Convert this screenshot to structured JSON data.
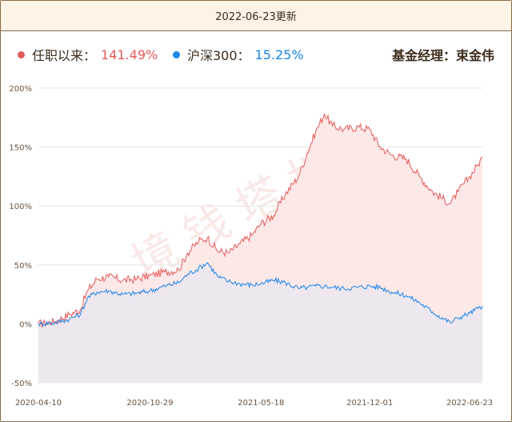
{
  "header": {
    "update_text": "2022-06-23更新"
  },
  "legend": {
    "fund": {
      "label": "任职以来：",
      "value": "141.49%",
      "color": "#e35a5a"
    },
    "index": {
      "label": "沪深300：",
      "value": "15.25%",
      "color": "#1a86e8"
    },
    "manager": "基金经理：束金伟"
  },
  "watermark": "境 钱 塔 地",
  "chart_data": {
    "type": "area",
    "y_unit": "%",
    "ylim": [
      -50,
      200
    ],
    "yticks": [
      "200%",
      "150%",
      "100%",
      "50%",
      "0%",
      "-50%"
    ],
    "ytick_values": [
      200,
      150,
      100,
      50,
      0,
      -50
    ],
    "x_range": [
      "2020-04-10",
      "2022-06-23"
    ],
    "xticks": [
      "2020-04-10",
      "2020-10-29",
      "2021-05-18",
      "2021-12-01",
      "2022-06-23"
    ],
    "grid": true,
    "series": [
      {
        "name": "任职以来",
        "color": "#e35a5a",
        "fill": "#fde8e8",
        "points": [
          [
            "2020-04-10",
            0
          ],
          [
            "2020-05-10",
            2
          ],
          [
            "2020-06-05",
            8
          ],
          [
            "2020-06-25",
            12
          ],
          [
            "2020-07-08",
            28
          ],
          [
            "2020-07-25",
            38
          ],
          [
            "2020-08-15",
            40
          ],
          [
            "2020-09-10",
            37
          ],
          [
            "2020-10-05",
            38
          ],
          [
            "2020-10-29",
            41
          ],
          [
            "2020-11-25",
            44
          ],
          [
            "2020-12-20",
            46
          ],
          [
            "2021-01-05",
            60
          ],
          [
            "2021-01-25",
            70
          ],
          [
            "2021-02-10",
            73
          ],
          [
            "2021-03-01",
            62
          ],
          [
            "2021-03-20",
            60
          ],
          [
            "2021-04-10",
            68
          ],
          [
            "2021-05-01",
            75
          ],
          [
            "2021-05-18",
            85
          ],
          [
            "2021-06-10",
            92
          ],
          [
            "2021-07-01",
            110
          ],
          [
            "2021-07-25",
            125
          ],
          [
            "2021-08-10",
            145
          ],
          [
            "2021-08-25",
            163
          ],
          [
            "2021-09-10",
            178
          ],
          [
            "2021-09-25",
            168
          ],
          [
            "2021-10-15",
            165
          ],
          [
            "2021-11-10",
            167
          ],
          [
            "2021-12-01",
            165
          ],
          [
            "2021-12-20",
            150
          ],
          [
            "2022-01-10",
            143
          ],
          [
            "2022-02-05",
            140
          ],
          [
            "2022-03-01",
            125
          ],
          [
            "2022-03-25",
            112
          ],
          [
            "2022-04-26",
            102
          ],
          [
            "2022-05-10",
            112
          ],
          [
            "2022-05-31",
            125
          ],
          [
            "2022-06-15",
            135
          ],
          [
            "2022-06-23",
            141.49
          ]
        ]
      },
      {
        "name": "沪深300",
        "color": "#1a86e8",
        "fill": "#ece6f0",
        "points": [
          [
            "2020-04-10",
            0
          ],
          [
            "2020-05-10",
            1
          ],
          [
            "2020-06-05",
            4
          ],
          [
            "2020-06-25",
            8
          ],
          [
            "2020-07-08",
            22
          ],
          [
            "2020-07-25",
            27
          ],
          [
            "2020-08-15",
            28
          ],
          [
            "2020-09-10",
            25
          ],
          [
            "2020-10-05",
            26
          ],
          [
            "2020-10-29",
            28
          ],
          [
            "2020-11-25",
            32
          ],
          [
            "2020-12-20",
            35
          ],
          [
            "2021-01-05",
            42
          ],
          [
            "2021-01-25",
            47
          ],
          [
            "2021-02-10",
            52
          ],
          [
            "2021-03-01",
            40
          ],
          [
            "2021-03-20",
            36
          ],
          [
            "2021-04-10",
            34
          ],
          [
            "2021-05-01",
            33
          ],
          [
            "2021-05-18",
            34
          ],
          [
            "2021-06-10",
            37
          ],
          [
            "2021-07-01",
            35
          ],
          [
            "2021-07-25",
            30
          ],
          [
            "2021-08-10",
            31
          ],
          [
            "2021-08-25",
            32
          ],
          [
            "2021-09-10",
            32
          ],
          [
            "2021-09-25",
            31
          ],
          [
            "2021-10-15",
            30
          ],
          [
            "2021-11-10",
            31
          ],
          [
            "2021-12-01",
            32
          ],
          [
            "2021-12-20",
            31
          ],
          [
            "2022-01-10",
            27
          ],
          [
            "2022-02-05",
            24
          ],
          [
            "2022-03-01",
            18
          ],
          [
            "2022-03-25",
            10
          ],
          [
            "2022-04-26",
            1
          ],
          [
            "2022-05-10",
            5
          ],
          [
            "2022-05-31",
            9
          ],
          [
            "2022-06-15",
            13
          ],
          [
            "2022-06-23",
            15.25
          ]
        ]
      }
    ]
  }
}
